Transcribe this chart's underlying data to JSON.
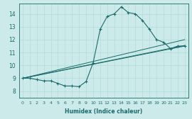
{
  "xlabel": "Humidex (Indice chaleur)",
  "bg_color": "#cceaea",
  "line_color": "#1a6b6b",
  "grid_color": "#b8dede",
  "xlim": [
    -0.5,
    23.5
  ],
  "ylim": [
    7.5,
    14.8
  ],
  "yticks": [
    8,
    9,
    10,
    11,
    12,
    13,
    14
  ],
  "xticks": [
    0,
    1,
    2,
    3,
    4,
    5,
    6,
    7,
    8,
    9,
    10,
    11,
    12,
    13,
    14,
    15,
    16,
    17,
    18,
    19,
    20,
    21,
    22,
    23
  ],
  "series1_x": [
    0,
    1,
    2,
    3,
    4,
    5,
    6,
    7,
    8,
    9,
    10,
    11,
    12,
    13,
    14,
    15,
    16,
    17,
    18,
    19,
    20,
    21,
    22,
    23
  ],
  "series1_y": [
    9.0,
    9.0,
    8.9,
    8.8,
    8.8,
    8.6,
    8.4,
    8.4,
    8.35,
    8.75,
    10.2,
    12.8,
    13.8,
    14.0,
    14.55,
    14.1,
    14.0,
    13.5,
    12.8,
    12.0,
    11.8,
    11.3,
    11.5,
    11.5
  ],
  "trend1_x": [
    0,
    23
  ],
  "trend1_y": [
    9.0,
    11.5
  ],
  "trend2_x": [
    0,
    23
  ],
  "trend2_y": [
    9.0,
    11.55
  ],
  "trend3_x": [
    0,
    23
  ],
  "trend3_y": [
    9.0,
    12.0
  ]
}
